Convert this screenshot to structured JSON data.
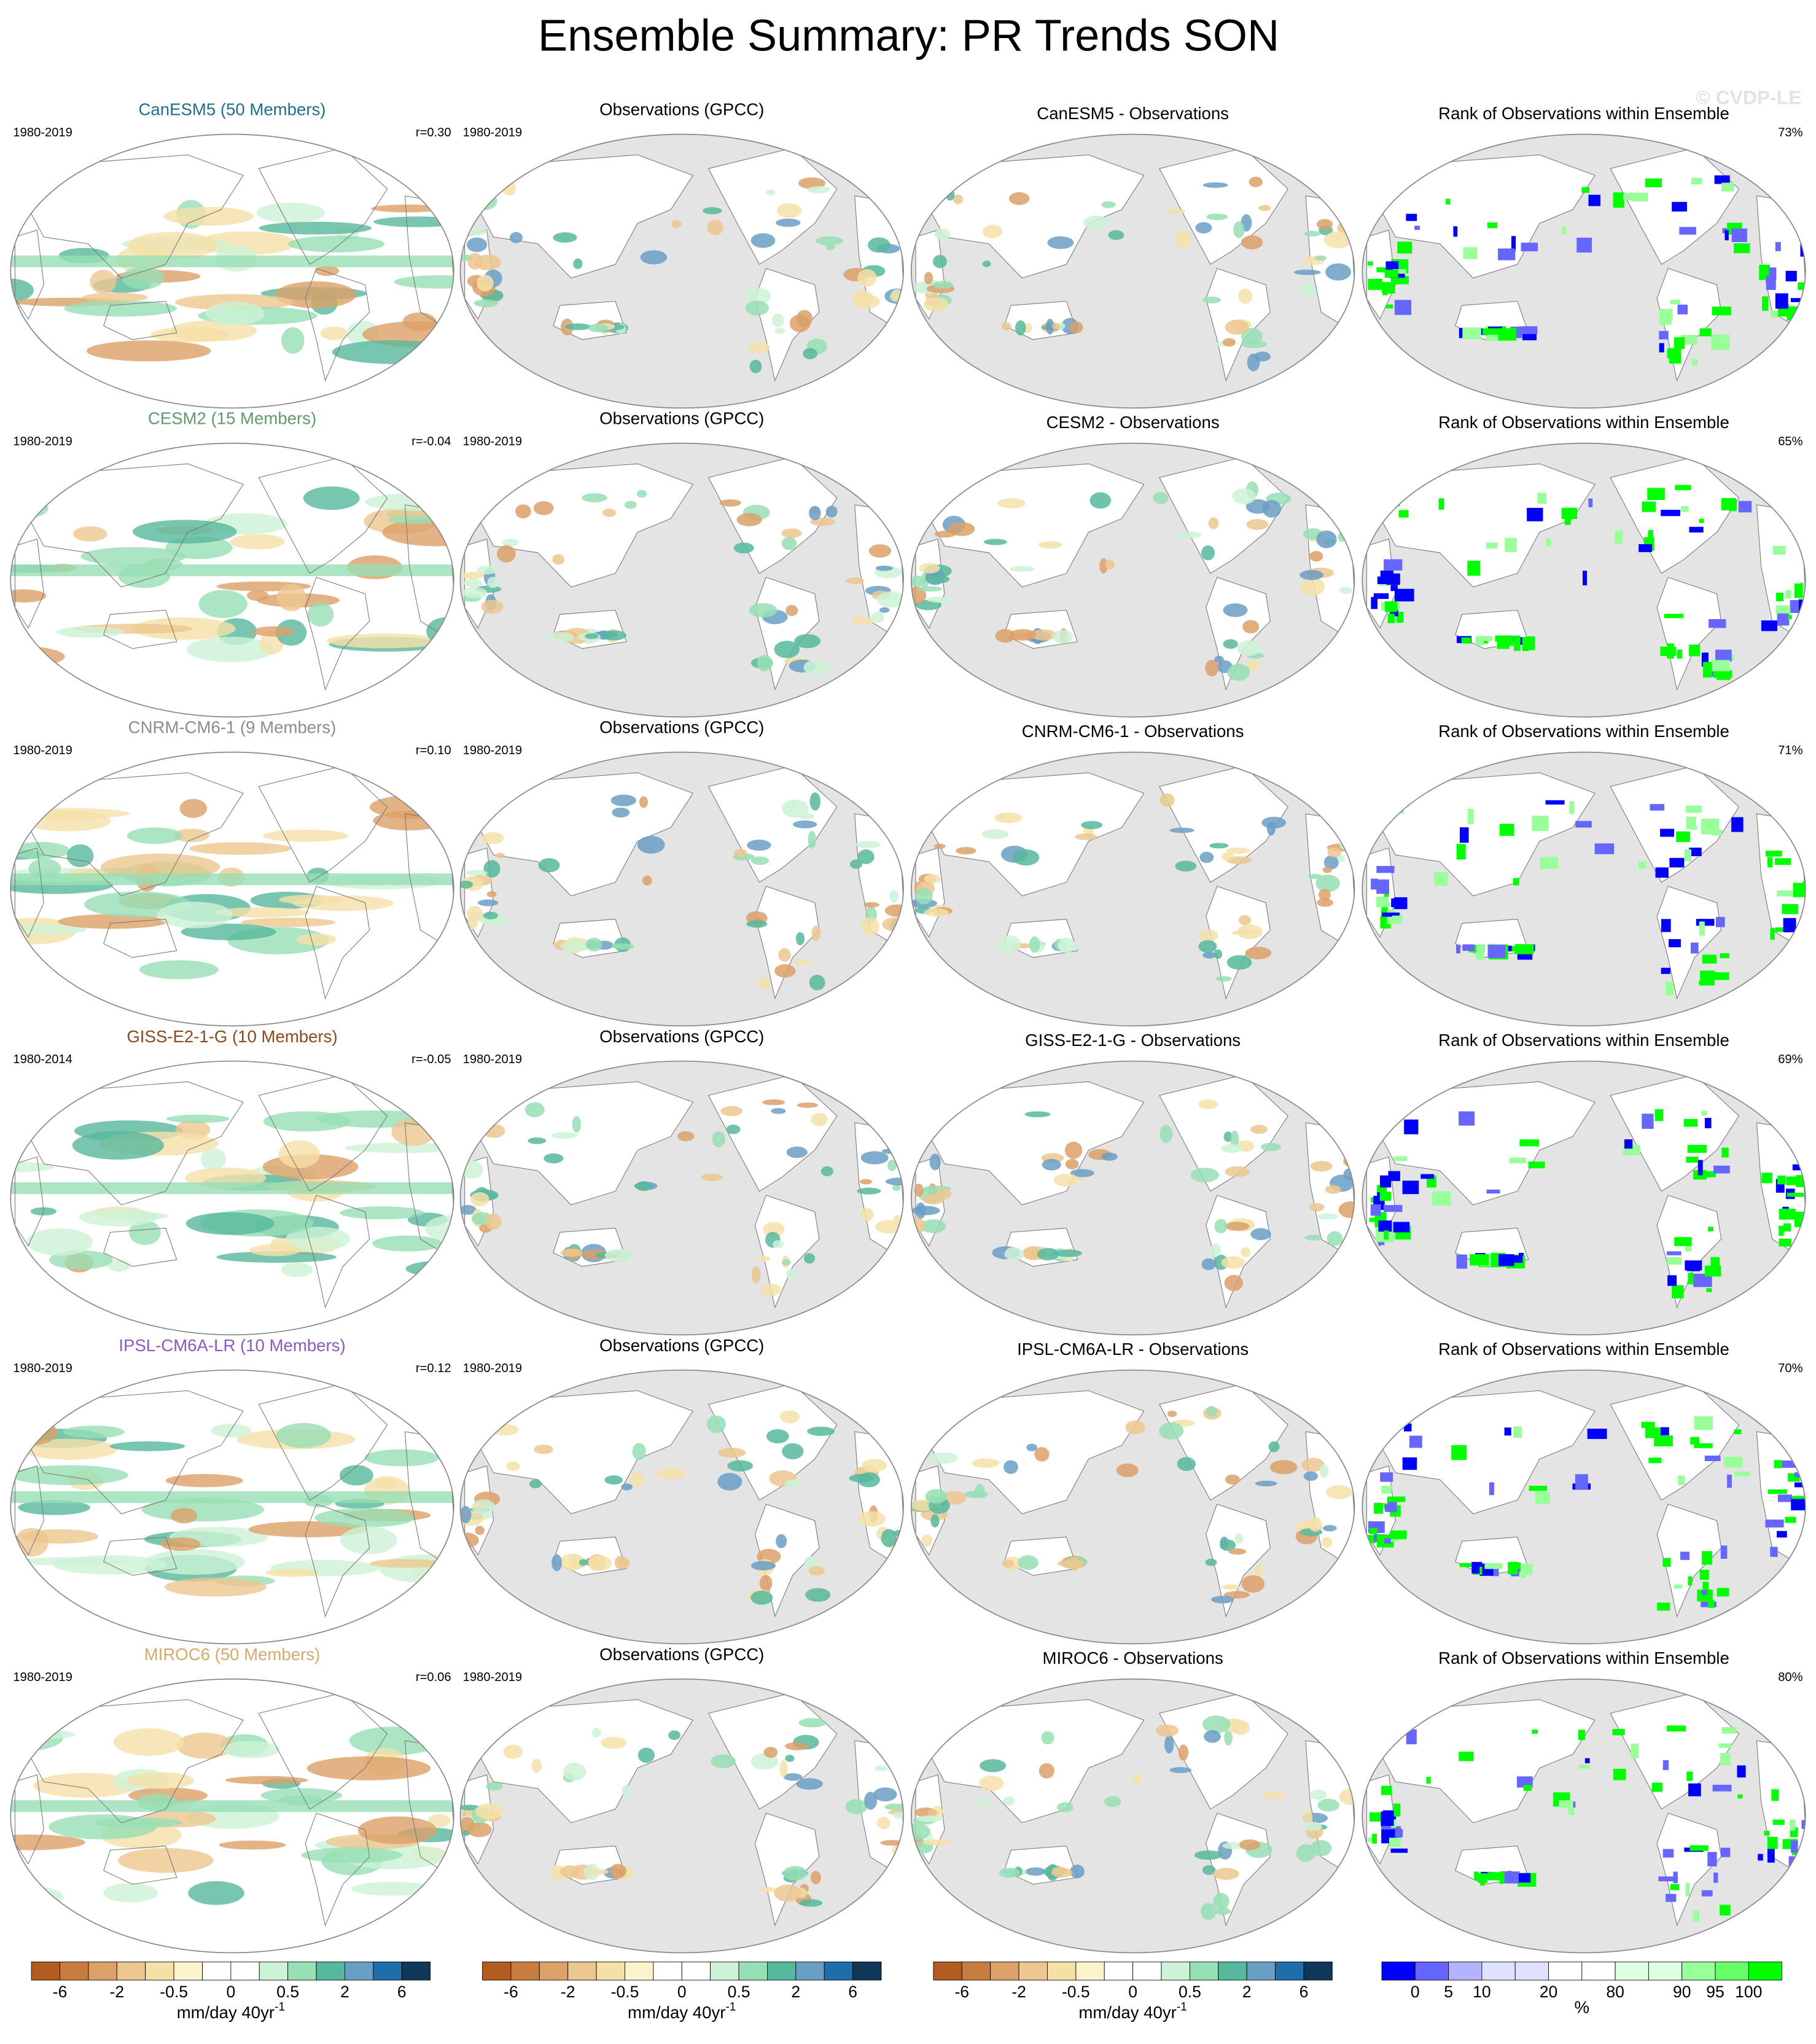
{
  "title": "Ensemble Summary: PR Trends SON",
  "watermark": "© CVDP-LE",
  "rows": [
    {
      "model": "CanESM5 (50 Members)",
      "model_color": "#1f6e8c",
      "model_period": "1980-2019",
      "pattern_corr": "r=0.30",
      "obs_title": "Observations (GPCC)",
      "obs_period": "1980-2019",
      "diff_title": "CanESM5 - Observations",
      "rank_title": "Rank of Observations within Ensemble",
      "rank_pct": "73%"
    },
    {
      "model": "CESM2 (15 Members)",
      "model_color": "#5f9a6e",
      "model_period": "1980-2019",
      "pattern_corr": "r=-0.04",
      "obs_title": "Observations (GPCC)",
      "obs_period": "1980-2019",
      "diff_title": "CESM2 - Observations",
      "rank_title": "Rank of Observations within Ensemble",
      "rank_pct": "65%"
    },
    {
      "model": "CNRM-CM6-1 (9 Members)",
      "model_color": "#8c8c8c",
      "model_period": "1980-2019",
      "pattern_corr": "r=0.10",
      "obs_title": "Observations (GPCC)",
      "obs_period": "1980-2019",
      "diff_title": "CNRM-CM6-1 - Observations",
      "rank_title": "Rank of Observations within Ensemble",
      "rank_pct": "71%"
    },
    {
      "model": "GISS-E2-1-G (10 Members)",
      "model_color": "#8b4a1c",
      "model_period": "1980-2014",
      "pattern_corr": "r=-0.05",
      "obs_title": "Observations (GPCC)",
      "obs_period": "1980-2019",
      "diff_title": "GISS-E2-1-G - Observations",
      "rank_title": "Rank of Observations within Ensemble",
      "rank_pct": "69%"
    },
    {
      "model": "IPSL-CM6A-LR (10 Members)",
      "model_color": "#8a5ac8",
      "model_period": "1980-2019",
      "pattern_corr": "r=0.12",
      "obs_title": "Observations (GPCC)",
      "obs_period": "1980-2019",
      "diff_title": "IPSL-CM6A-LR - Observations",
      "rank_title": "Rank of Observations within Ensemble",
      "rank_pct": "70%"
    },
    {
      "model": "MIROC6 (50 Members)",
      "model_color": "#d9a86c",
      "model_period": "1980-2019",
      "pattern_corr": "r=0.06",
      "obs_title": "Observations (GPCC)",
      "obs_period": "1980-2019",
      "diff_title": "MIROC6 - Observations",
      "rank_title": "Rank of Observations within Ensemble",
      "rank_pct": "80%"
    }
  ],
  "colorbars": [
    {
      "colors": [
        "#b25d1f",
        "#c97c3f",
        "#dca068",
        "#ecc78f",
        "#f5e0a8",
        "#fbf3cc",
        "#ffffff",
        "#ffffff",
        "#cdf2d6",
        "#97dfb4",
        "#56b89c",
        "#6a9ec4",
        "#1f6eac",
        "#10375a"
      ],
      "labels": [
        "-6",
        "-2",
        "-0.5",
        "0",
        "0.5",
        "2",
        "6"
      ],
      "unit": "mm/day 40yr",
      "unit_superscript": "-1"
    },
    {
      "colors": [
        "#b25d1f",
        "#c97c3f",
        "#dca068",
        "#ecc78f",
        "#f5e0a8",
        "#fbf3cc",
        "#ffffff",
        "#ffffff",
        "#cdf2d6",
        "#97dfb4",
        "#56b89c",
        "#6a9ec4",
        "#1f6eac",
        "#10375a"
      ],
      "labels": [
        "-6",
        "-2",
        "-0.5",
        "0",
        "0.5",
        "2",
        "6"
      ],
      "unit": "mm/day 40yr",
      "unit_superscript": "-1"
    },
    {
      "colors": [
        "#b25d1f",
        "#c97c3f",
        "#dca068",
        "#ecc78f",
        "#f5e0a8",
        "#fbf3cc",
        "#ffffff",
        "#ffffff",
        "#cdf2d6",
        "#97dfb4",
        "#56b89c",
        "#6a9ec4",
        "#1f6eac",
        "#10375a"
      ],
      "labels": [
        "-6",
        "-2",
        "-0.5",
        "0",
        "0.5",
        "2",
        "6"
      ],
      "unit": "mm/day 40yr",
      "unit_superscript": "-1"
    },
    {
      "colors": [
        "#0000ff",
        "#6666ff",
        "#b3b3ff",
        "#e0e0ff",
        "#e0e0ff",
        "#ffffff",
        "#ffffff",
        "#e0ffe0",
        "#e0ffe0",
        "#99ff99",
        "#66ff66",
        "#00ff00"
      ],
      "labels": [
        "0",
        "5",
        "10",
        "20",
        "80",
        "90",
        "95",
        "100"
      ],
      "unit": "%"
    }
  ]
}
